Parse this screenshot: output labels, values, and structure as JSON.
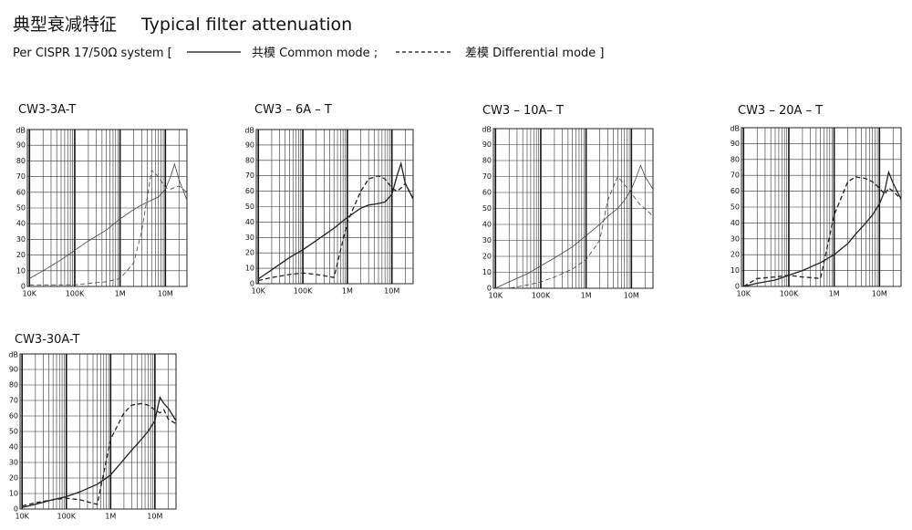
{
  "header": {
    "title_cn": "典型衰减特征",
    "title_en": "Typical filter attenuation",
    "system": "Per CISPR 17/50Ω  system   [",
    "common_mode": "共模  Common mode ;",
    "differential_mode": "差模  Differential mode ]"
  },
  "chart_data": [
    {
      "type": "line",
      "title": "CW3-3A-T",
      "y_label": "dB",
      "xscale": "log",
      "grid": true,
      "x": [
        10000,
        20000,
        50000,
        100000,
        200000,
        500000,
        1000000,
        2000000,
        3000000,
        5000000,
        7000000,
        10000000,
        13000000,
        16000000,
        20000000,
        30000000
      ],
      "xlim": [
        9000,
        30000000
      ],
      "xticks": [
        {
          "value": 10000,
          "label": "10K"
        },
        {
          "value": 100000,
          "label": "100K"
        },
        {
          "value": 1000000,
          "label": "1M"
        },
        {
          "value": 10000000,
          "label": "10M"
        }
      ],
      "ylim": [
        0,
        100
      ],
      "yticks": [
        0,
        10,
        20,
        30,
        40,
        50,
        60,
        70,
        80,
        90
      ],
      "series": [
        {
          "color": "#444444",
          "dash": "solid",
          "width": 0.8,
          "values": [
            5,
            10,
            17,
            23,
            29,
            36,
            43,
            49,
            52,
            55,
            57,
            62,
            70,
            78,
            68,
            55
          ]
        },
        {
          "color": "#444444",
          "dash": "dashed",
          "width": 0.8,
          "values": [
            1,
            1,
            1,
            1,
            2,
            3,
            5,
            15,
            35,
            74,
            70,
            63,
            62,
            63,
            64,
            60
          ]
        }
      ]
    },
    {
      "type": "line",
      "title": "CW3 – 6A – T",
      "y_label": "dB",
      "xscale": "log",
      "grid": true,
      "x": [
        10000,
        20000,
        50000,
        100000,
        200000,
        500000,
        1000000,
        2000000,
        3000000,
        5000000,
        7000000,
        10000000,
        13000000,
        16000000,
        20000000,
        30000000
      ],
      "xlim": [
        9000,
        30000000
      ],
      "xticks": [
        {
          "value": 10000,
          "label": "10K"
        },
        {
          "value": 100000,
          "label": "100K"
        },
        {
          "value": 1000000,
          "label": "1M"
        },
        {
          "value": 10000000,
          "label": "10M"
        }
      ],
      "ylim": [
        0,
        100
      ],
      "yticks": [
        0,
        10,
        20,
        30,
        40,
        50,
        60,
        70,
        80,
        90
      ],
      "series": [
        {
          "color": "#222222",
          "dash": "solid",
          "width": 1.3,
          "values": [
            3,
            9,
            17,
            22,
            28,
            36,
            43,
            49,
            51,
            52,
            53,
            58,
            70,
            78,
            65,
            55
          ]
        },
        {
          "color": "#222222",
          "dash": "dashed",
          "width": 1.3,
          "values": [
            2,
            4,
            6,
            7,
            6,
            4,
            40,
            60,
            68,
            70,
            68,
            62,
            60,
            62,
            65,
            55
          ]
        }
      ]
    },
    {
      "type": "line",
      "title": "CW3 – 10A– T",
      "y_label": "dB",
      "xscale": "log",
      "grid": true,
      "x": [
        10000,
        20000,
        50000,
        100000,
        200000,
        500000,
        1000000,
        2000000,
        3000000,
        5000000,
        7000000,
        10000000,
        13000000,
        16000000,
        20000000,
        30000000
      ],
      "xlim": [
        9000,
        30000000
      ],
      "xticks": [
        {
          "value": 10000,
          "label": "10K"
        },
        {
          "value": 100000,
          "label": "100K"
        },
        {
          "value": 1000000,
          "label": "1M"
        },
        {
          "value": 10000000,
          "label": "10M"
        }
      ],
      "ylim": [
        0,
        100
      ],
      "yticks": [
        0,
        10,
        20,
        30,
        40,
        50,
        60,
        70,
        80,
        90
      ],
      "series": [
        {
          "color": "#444444",
          "dash": "solid",
          "width": 0.8,
          "values": [
            0,
            4,
            9,
            14,
            19,
            26,
            33,
            40,
            45,
            50,
            55,
            62,
            70,
            77,
            70,
            62
          ]
        },
        {
          "color": "#444444",
          "dash": "dashed",
          "width": 0.8,
          "values": [
            0,
            0,
            2,
            4,
            7,
            12,
            18,
            30,
            55,
            70,
            65,
            60,
            55,
            52,
            50,
            45
          ]
        }
      ]
    },
    {
      "type": "line",
      "title": "CW3 – 20A – T",
      "y_label": "dB",
      "xscale": "log",
      "grid": true,
      "x": [
        10000,
        20000,
        50000,
        100000,
        200000,
        500000,
        1000000,
        2000000,
        3000000,
        5000000,
        7000000,
        10000000,
        13000000,
        16000000,
        20000000,
        30000000
      ],
      "xlim": [
        9000,
        30000000
      ],
      "xticks": [
        {
          "value": 10000,
          "label": "10K"
        },
        {
          "value": 100000,
          "label": "100K"
        },
        {
          "value": 1000000,
          "label": "1M"
        },
        {
          "value": 10000000,
          "label": "10M"
        }
      ],
      "ylim": [
        0,
        100
      ],
      "yticks": [
        0,
        10,
        20,
        30,
        40,
        50,
        60,
        70,
        80,
        90
      ],
      "series": [
        {
          "color": "#222222",
          "dash": "solid",
          "width": 1.3,
          "values": [
            0,
            2,
            4,
            7,
            10,
            15,
            20,
            27,
            33,
            40,
            45,
            52,
            60,
            72,
            65,
            55
          ]
        },
        {
          "color": "#222222",
          "dash": "dashed",
          "width": 1.3,
          "values": [
            0,
            5,
            6,
            7,
            6,
            5,
            45,
            66,
            69,
            68,
            66,
            62,
            58,
            62,
            60,
            55
          ]
        }
      ]
    },
    {
      "type": "line",
      "title": "CW3-30A-T",
      "y_label": "dB",
      "xscale": "log",
      "grid": true,
      "x": [
        10000,
        20000,
        50000,
        100000,
        200000,
        500000,
        1000000,
        2000000,
        3000000,
        5000000,
        7000000,
        10000000,
        13000000,
        16000000,
        20000000,
        30000000
      ],
      "xlim": [
        9000,
        30000000
      ],
      "xticks": [
        {
          "value": 10000,
          "label": "10K"
        },
        {
          "value": 100000,
          "label": "100K"
        },
        {
          "value": 1000000,
          "label": "1M"
        },
        {
          "value": 10000000,
          "label": "10M"
        }
      ],
      "ylim": [
        0,
        100
      ],
      "yticks": [
        0,
        10,
        20,
        30,
        40,
        50,
        60,
        70,
        80,
        90
      ],
      "series": [
        {
          "color": "#222222",
          "dash": "solid",
          "width": 1.3,
          "values": [
            1,
            3,
            6,
            8,
            11,
            16,
            22,
            32,
            38,
            45,
            50,
            57,
            72,
            68,
            65,
            57
          ]
        },
        {
          "color": "#222222",
          "dash": "dashed",
          "width": 1.3,
          "values": [
            2,
            4,
            6,
            7,
            6,
            3,
            45,
            62,
            67,
            68,
            67,
            64,
            62,
            64,
            58,
            55
          ]
        }
      ]
    }
  ]
}
